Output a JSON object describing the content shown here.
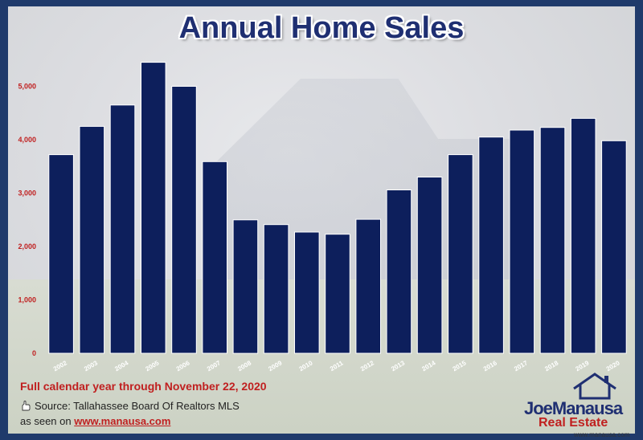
{
  "title": "Annual Home Sales",
  "footer": {
    "subtitle": "Full calendar year through November 22, 2020",
    "source": "Source: Tallahassee Board Of Realtors MLS",
    "seen_prefix": "as seen on ",
    "seen_url": "www.manausa.com"
  },
  "logo": {
    "name_part1": "Joe",
    "name_part2": "Manausa",
    "tagline": "Real Estate",
    "url": "www.manausa.com"
  },
  "colors": {
    "bar": "#0d1f5c",
    "title": "#1f2f72",
    "accent": "#c02020"
  },
  "chart_data": {
    "type": "bar",
    "title": "Annual Home Sales",
    "categories": [
      "2002",
      "2003",
      "2004",
      "2005",
      "2006",
      "2007",
      "2008",
      "2009",
      "2010",
      "2011",
      "2012",
      "2013",
      "2014",
      "2015",
      "2016",
      "2017",
      "2018",
      "2019",
      "2020"
    ],
    "values": [
      3720,
      4250,
      4650,
      5450,
      5000,
      3590,
      2500,
      2410,
      2270,
      2230,
      2510,
      3060,
      3300,
      3720,
      4050,
      4180,
      4230,
      4400,
      3980
    ],
    "ylim": [
      0,
      5500
    ],
    "yticks": [
      0,
      1000,
      2000,
      3000,
      4000,
      5000
    ],
    "ytick_labels": [
      "0",
      "1,000",
      "2,000",
      "3,000",
      "4,000",
      "5,000"
    ],
    "grid": false,
    "xlabel": "",
    "ylabel": ""
  }
}
